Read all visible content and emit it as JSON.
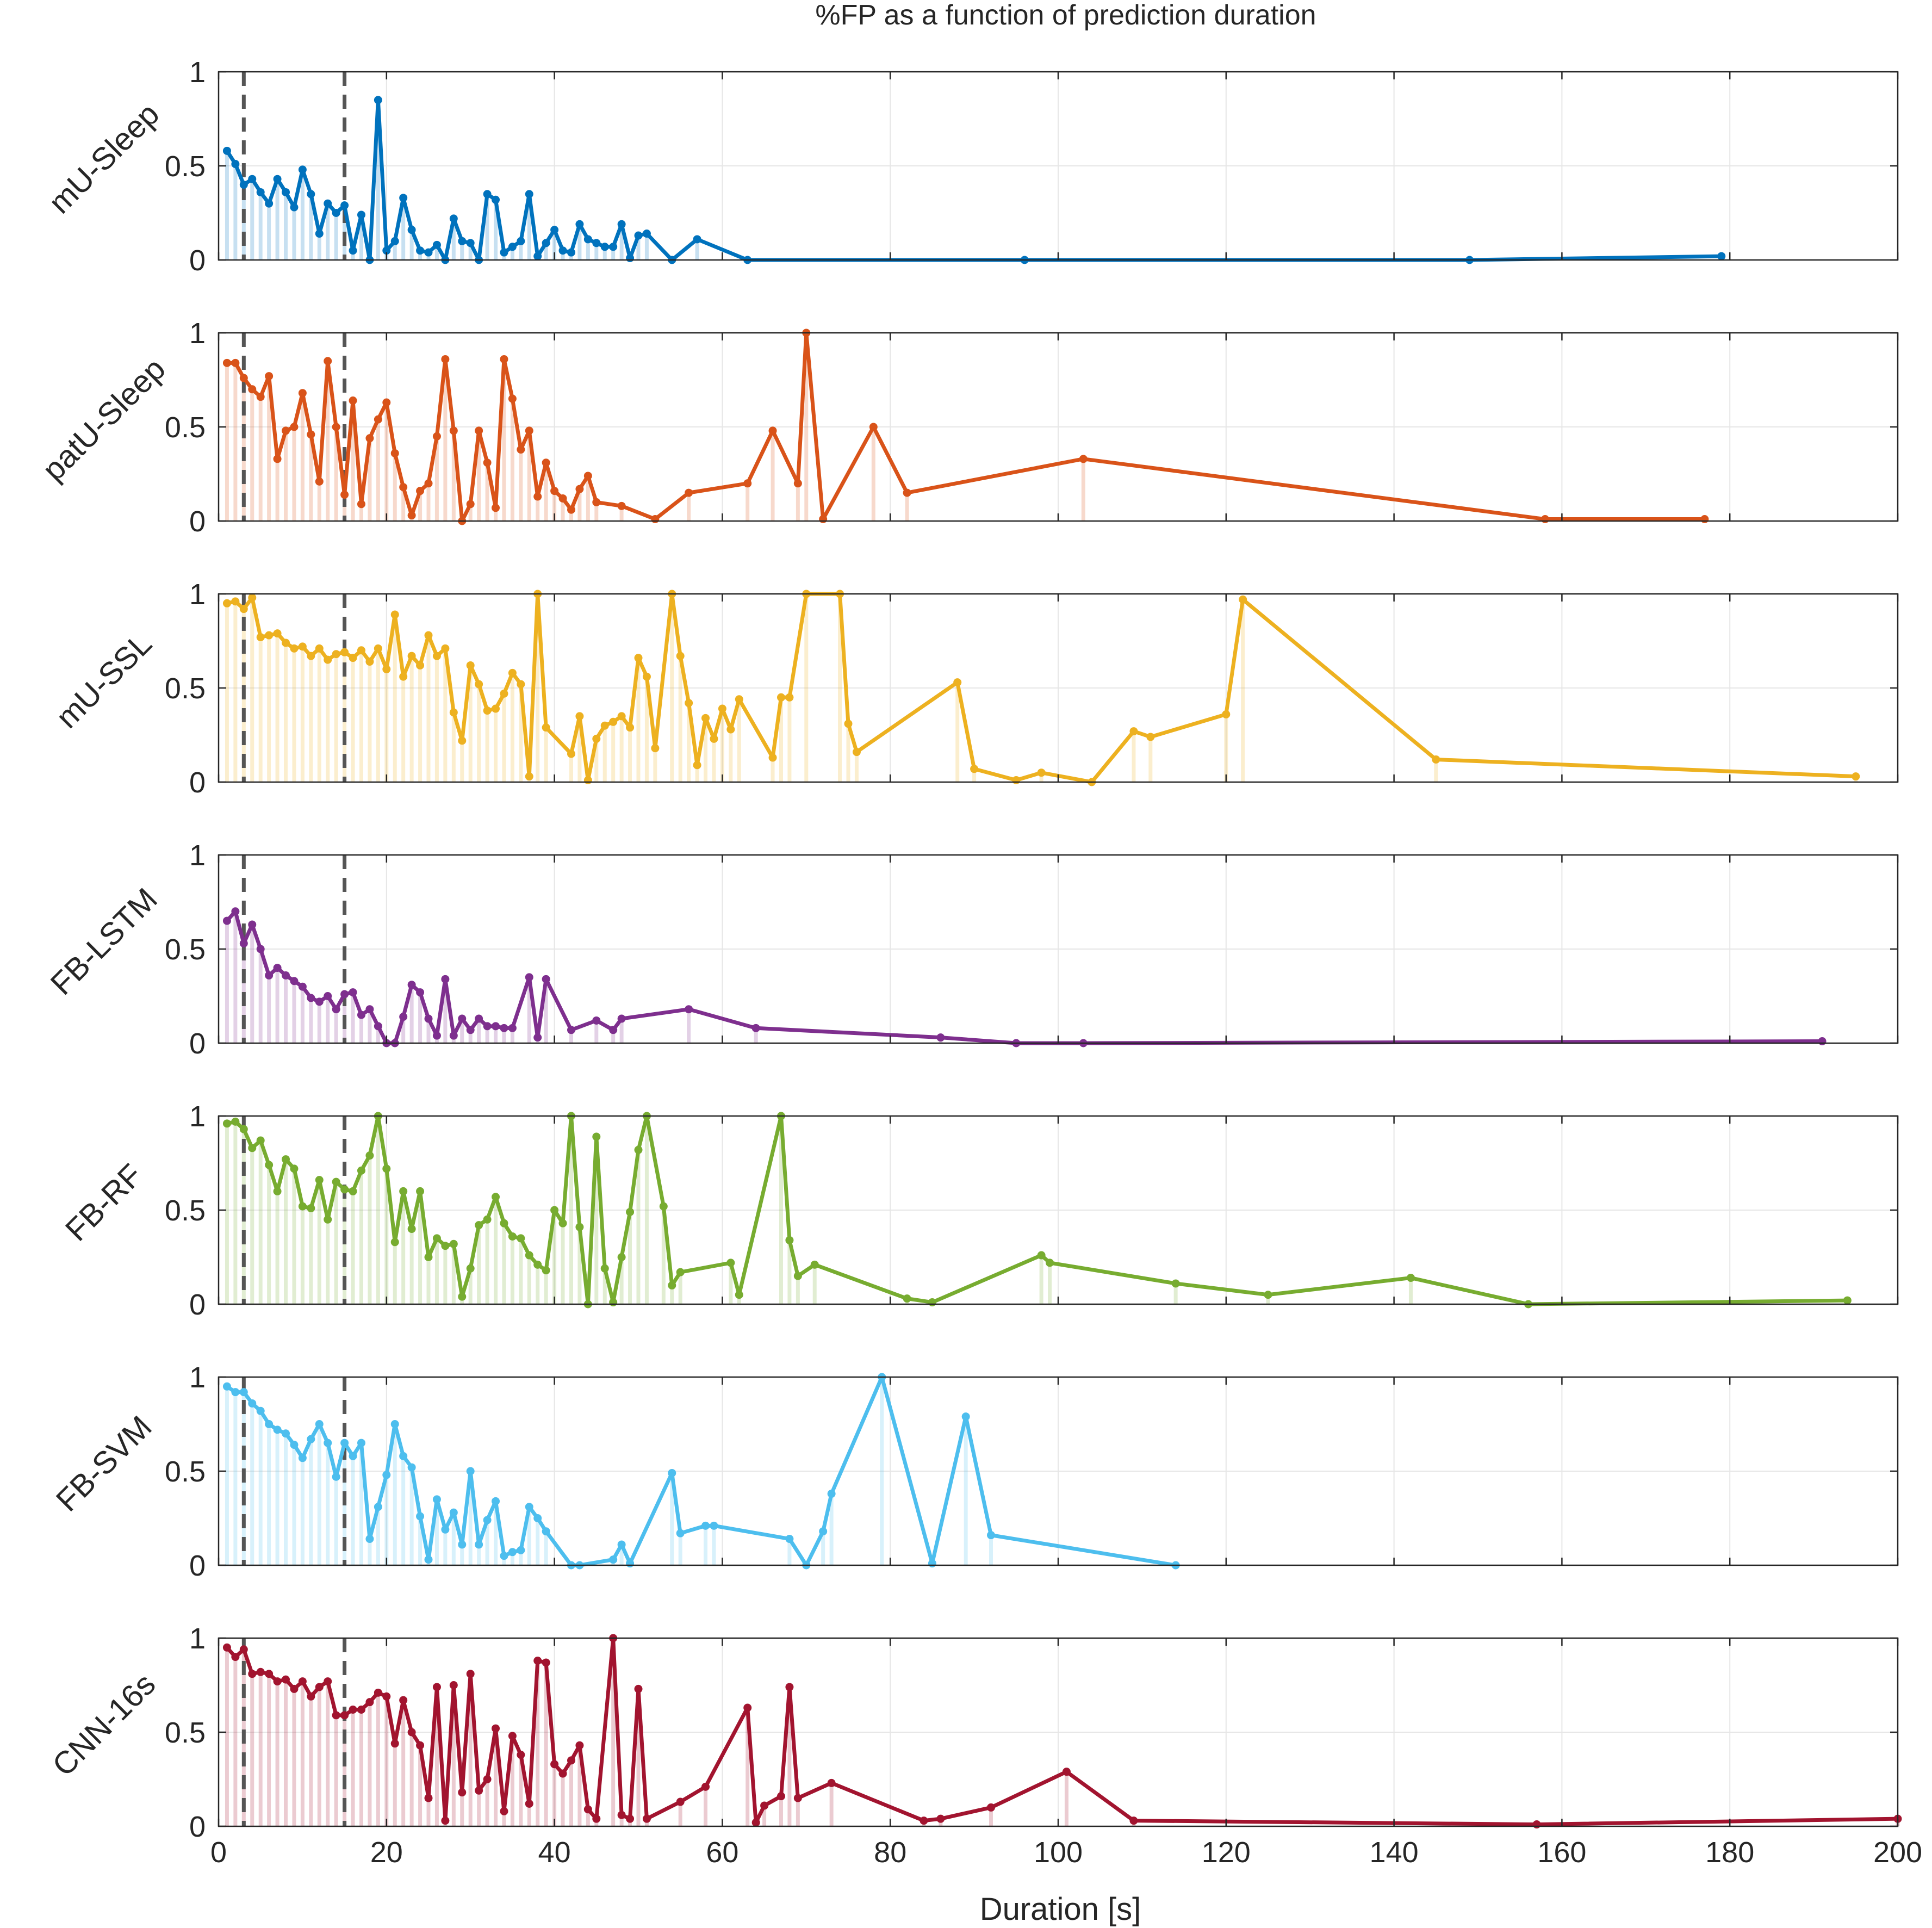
{
  "title": "%FP as a function of prediction duration",
  "xlabel": "Duration [s]",
  "chart_data": {
    "type": "line",
    "title": "%FP as a function of prediction duration",
    "xlabel": "Duration [s]",
    "xlim": [
      0,
      200
    ],
    "ylim": [
      0,
      1
    ],
    "x_ticks": [
      0,
      20,
      40,
      60,
      80,
      100,
      120,
      140,
      160,
      180,
      200
    ],
    "y_ticks": [
      0,
      0.5,
      1
    ],
    "x_tick_labels": [
      "0",
      "20",
      "40",
      "60",
      "80",
      "100",
      "120",
      "140",
      "160",
      "180",
      "200"
    ],
    "y_tick_labels": [
      "0",
      "0.5",
      "1"
    ],
    "reference_lines_x": [
      3,
      15
    ],
    "grid": true,
    "panels": [
      {
        "name": "mU-Sleep",
        "color": "#0072BD",
        "x": [
          1,
          2,
          3,
          4,
          5,
          6,
          7,
          8,
          9,
          10,
          11,
          12,
          13,
          14,
          15,
          16,
          17,
          18,
          19,
          20,
          21,
          22,
          23,
          24,
          25,
          26,
          27,
          28,
          29,
          30,
          31,
          32,
          33,
          34,
          35,
          36,
          37,
          38,
          39,
          40,
          41,
          42,
          43,
          44,
          45,
          46,
          47,
          48,
          49,
          50,
          51,
          54,
          57,
          63,
          96,
          149,
          179
        ],
        "values": [
          0.58,
          0.51,
          0.4,
          0.43,
          0.36,
          0.3,
          0.43,
          0.36,
          0.28,
          0.48,
          0.35,
          0.14,
          0.3,
          0.25,
          0.29,
          0.05,
          0.24,
          0.0,
          0.85,
          0.05,
          0.1,
          0.33,
          0.16,
          0.05,
          0.04,
          0.08,
          0.0,
          0.22,
          0.1,
          0.09,
          0.0,
          0.35,
          0.32,
          0.04,
          0.07,
          0.1,
          0.35,
          0.02,
          0.09,
          0.16,
          0.05,
          0.04,
          0.19,
          0.11,
          0.09,
          0.07,
          0.07,
          0.19,
          0.01,
          0.13,
          0.14,
          0.0,
          0.11,
          0.0,
          0.0,
          0.0,
          0.02
        ]
      },
      {
        "name": "patU-Sleep",
        "color": "#D95319",
        "x": [
          1,
          2,
          3,
          4,
          5,
          6,
          7,
          8,
          9,
          10,
          11,
          12,
          13,
          14,
          15,
          16,
          17,
          18,
          19,
          20,
          21,
          22,
          23,
          24,
          25,
          26,
          27,
          28,
          29,
          30,
          31,
          32,
          33,
          34,
          35,
          36,
          37,
          38,
          39,
          40,
          41,
          42,
          43,
          44,
          45,
          48,
          52,
          56,
          63,
          66,
          69,
          70,
          72,
          78,
          82,
          103,
          158,
          177
        ],
        "values": [
          0.84,
          0.84,
          0.76,
          0.7,
          0.66,
          0.77,
          0.33,
          0.48,
          0.5,
          0.68,
          0.46,
          0.21,
          0.85,
          0.5,
          0.14,
          0.64,
          0.09,
          0.44,
          0.54,
          0.63,
          0.36,
          0.18,
          0.03,
          0.16,
          0.2,
          0.45,
          0.86,
          0.48,
          0.0,
          0.09,
          0.48,
          0.31,
          0.07,
          0.86,
          0.65,
          0.38,
          0.48,
          0.13,
          0.31,
          0.16,
          0.12,
          0.06,
          0.17,
          0.24,
          0.1,
          0.08,
          0.01,
          0.15,
          0.2,
          0.48,
          0.2,
          1.0,
          0.01,
          0.5,
          0.15,
          0.33,
          0.01,
          0.01
        ]
      },
      {
        "name": "mU-SSL",
        "color": "#EDB120",
        "x": [
          1,
          2,
          3,
          4,
          5,
          6,
          7,
          8,
          9,
          10,
          11,
          12,
          13,
          14,
          15,
          16,
          17,
          18,
          19,
          20,
          21,
          22,
          23,
          24,
          25,
          26,
          27,
          28,
          29,
          30,
          31,
          32,
          33,
          34,
          35,
          36,
          37,
          38,
          39,
          42,
          43,
          44,
          45,
          46,
          47,
          48,
          49,
          50,
          51,
          52,
          54,
          55,
          56,
          57,
          58,
          59,
          60,
          61,
          62,
          66,
          67,
          68,
          70,
          74,
          75,
          76,
          88,
          90,
          95,
          98,
          104,
          109,
          111,
          120,
          122,
          145,
          195
        ],
        "values": [
          0.95,
          0.96,
          0.92,
          0.98,
          0.77,
          0.78,
          0.79,
          0.74,
          0.71,
          0.72,
          0.67,
          0.71,
          0.65,
          0.68,
          0.69,
          0.66,
          0.7,
          0.64,
          0.71,
          0.6,
          0.89,
          0.56,
          0.67,
          0.62,
          0.78,
          0.67,
          0.71,
          0.37,
          0.22,
          0.62,
          0.52,
          0.38,
          0.39,
          0.47,
          0.58,
          0.52,
          0.03,
          1.0,
          0.29,
          0.15,
          0.35,
          0.01,
          0.23,
          0.3,
          0.32,
          0.35,
          0.29,
          0.66,
          0.56,
          0.18,
          1.0,
          0.67,
          0.42,
          0.09,
          0.34,
          0.23,
          0.39,
          0.28,
          0.44,
          0.13,
          0.45,
          0.45,
          1.0,
          1.0,
          0.31,
          0.16,
          0.53,
          0.07,
          0.01,
          0.05,
          0.0,
          0.27,
          0.24,
          0.36,
          0.97,
          0.12,
          0.03
        ]
      },
      {
        "name": "FB-LSTM",
        "color": "#7E2F8E",
        "x": [
          1,
          2,
          3,
          4,
          5,
          6,
          7,
          8,
          9,
          10,
          11,
          12,
          13,
          14,
          15,
          16,
          17,
          18,
          19,
          20,
          21,
          22,
          23,
          24,
          25,
          26,
          27,
          28,
          29,
          30,
          31,
          32,
          33,
          34,
          35,
          37,
          38,
          39,
          42,
          45,
          47,
          48,
          56,
          64,
          86,
          95,
          103,
          191
        ],
        "values": [
          0.65,
          0.7,
          0.53,
          0.63,
          0.5,
          0.36,
          0.4,
          0.36,
          0.33,
          0.3,
          0.24,
          0.22,
          0.25,
          0.18,
          0.26,
          0.27,
          0.15,
          0.18,
          0.09,
          0.0,
          0.0,
          0.14,
          0.31,
          0.27,
          0.13,
          0.04,
          0.34,
          0.04,
          0.13,
          0.07,
          0.13,
          0.09,
          0.09,
          0.08,
          0.08,
          0.35,
          0.03,
          0.34,
          0.07,
          0.12,
          0.07,
          0.13,
          0.18,
          0.08,
          0.03,
          0.0,
          0.0,
          0.01
        ]
      },
      {
        "name": "FB-RF",
        "color": "#77AC30",
        "x": [
          1,
          2,
          3,
          4,
          5,
          6,
          7,
          8,
          9,
          10,
          11,
          12,
          13,
          14,
          15,
          16,
          17,
          18,
          19,
          20,
          21,
          22,
          23,
          24,
          25,
          26,
          27,
          28,
          29,
          30,
          31,
          32,
          33,
          34,
          35,
          36,
          37,
          38,
          39,
          40,
          41,
          42,
          43,
          44,
          45,
          46,
          47,
          48,
          49,
          50,
          51,
          53,
          54,
          55,
          61,
          62,
          67,
          68,
          69,
          71,
          82,
          85,
          98,
          99,
          114,
          125,
          142,
          156,
          194
        ],
        "values": [
          0.96,
          0.97,
          0.93,
          0.83,
          0.87,
          0.74,
          0.6,
          0.77,
          0.72,
          0.52,
          0.51,
          0.66,
          0.45,
          0.65,
          0.61,
          0.6,
          0.71,
          0.79,
          1.0,
          0.72,
          0.33,
          0.6,
          0.4,
          0.6,
          0.25,
          0.35,
          0.31,
          0.32,
          0.04,
          0.19,
          0.42,
          0.45,
          0.57,
          0.43,
          0.36,
          0.35,
          0.26,
          0.21,
          0.18,
          0.5,
          0.43,
          1.0,
          0.41,
          0.0,
          0.89,
          0.19,
          0.01,
          0.25,
          0.49,
          0.82,
          1.0,
          0.52,
          0.1,
          0.17,
          0.22,
          0.05,
          1.0,
          0.34,
          0.15,
          0.21,
          0.03,
          0.01,
          0.26,
          0.22,
          0.11,
          0.05,
          0.14,
          0.0,
          0.02
        ]
      },
      {
        "name": "FB-SVM",
        "color": "#4DBEEE",
        "x": [
          1,
          2,
          3,
          4,
          5,
          6,
          7,
          8,
          9,
          10,
          11,
          12,
          13,
          14,
          15,
          16,
          17,
          18,
          19,
          20,
          21,
          22,
          23,
          24,
          25,
          26,
          27,
          28,
          29,
          30,
          31,
          32,
          33,
          34,
          35,
          36,
          37,
          38,
          39,
          42,
          43,
          47,
          48,
          49,
          54,
          55,
          58,
          59,
          68,
          70,
          72,
          73,
          79,
          85,
          89,
          92,
          114
        ],
        "values": [
          0.95,
          0.92,
          0.92,
          0.86,
          0.82,
          0.75,
          0.72,
          0.7,
          0.64,
          0.57,
          0.67,
          0.75,
          0.65,
          0.47,
          0.65,
          0.58,
          0.65,
          0.14,
          0.31,
          0.48,
          0.75,
          0.58,
          0.52,
          0.26,
          0.03,
          0.35,
          0.19,
          0.28,
          0.11,
          0.5,
          0.11,
          0.24,
          0.34,
          0.05,
          0.07,
          0.08,
          0.31,
          0.25,
          0.18,
          0.0,
          0.0,
          0.03,
          0.11,
          0.01,
          0.49,
          0.17,
          0.21,
          0.21,
          0.14,
          0.0,
          0.18,
          0.38,
          1.0,
          0.01,
          0.79,
          0.16,
          0.0
        ]
      },
      {
        "name": "CNN-16s",
        "color": "#A2142F",
        "x": [
          1,
          2,
          3,
          4,
          5,
          6,
          7,
          8,
          9,
          10,
          11,
          12,
          13,
          14,
          15,
          16,
          17,
          18,
          19,
          20,
          21,
          22,
          23,
          24,
          25,
          26,
          27,
          28,
          29,
          30,
          31,
          32,
          33,
          34,
          35,
          36,
          37,
          38,
          39,
          40,
          41,
          42,
          43,
          44,
          45,
          47,
          48,
          49,
          50,
          51,
          55,
          58,
          63,
          64,
          65,
          67,
          68,
          69,
          73,
          84,
          86,
          92,
          101,
          109,
          157,
          200
        ],
        "values": [
          0.95,
          0.9,
          0.94,
          0.81,
          0.82,
          0.81,
          0.77,
          0.78,
          0.73,
          0.77,
          0.69,
          0.74,
          0.77,
          0.59,
          0.59,
          0.62,
          0.62,
          0.66,
          0.71,
          0.69,
          0.44,
          0.67,
          0.5,
          0.43,
          0.15,
          0.74,
          0.03,
          0.75,
          0.18,
          0.81,
          0.19,
          0.25,
          0.52,
          0.08,
          0.48,
          0.38,
          0.12,
          0.88,
          0.87,
          0.33,
          0.28,
          0.35,
          0.43,
          0.09,
          0.04,
          1.0,
          0.06,
          0.04,
          0.73,
          0.04,
          0.13,
          0.21,
          0.63,
          0.02,
          0.11,
          0.16,
          0.74,
          0.15,
          0.23,
          0.03,
          0.04,
          0.1,
          0.29,
          0.03,
          0.01,
          0.04
        ]
      }
    ]
  }
}
